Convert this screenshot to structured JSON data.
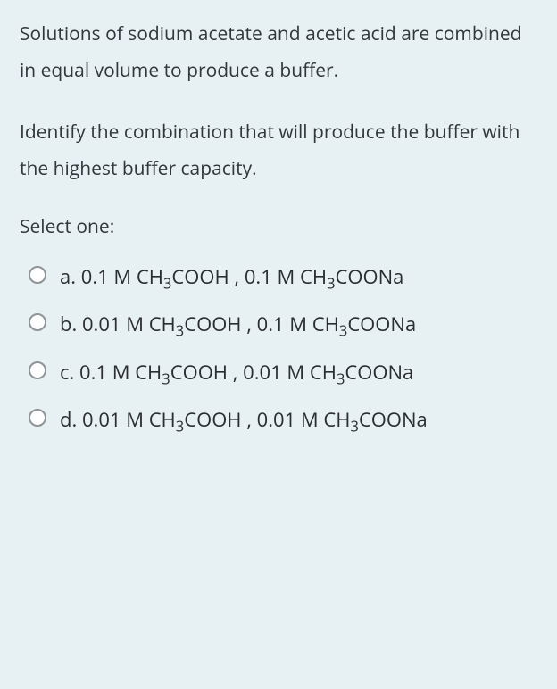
{
  "background_color": "#e7f0f2",
  "text_color": "#32373c",
  "option_text_color": "#2a2e32",
  "radio_border_color": "#8f9498",
  "font_family": "Segoe UI, Open Sans, Arial, sans-serif",
  "question": {
    "paragraph1": "Solutions of sodium acetate and acetic acid are combined in equal volume to produce a buffer.",
    "paragraph2": "Identify the combination that will produce the buffer with the highest buffer capacity."
  },
  "select_one_label": "Select one:",
  "options": [
    {
      "letter": "a.",
      "prefix1": "0.1 M CH",
      "sub1": "3",
      "mid1": "COOH , 0.1 M CH",
      "sub2": "3",
      "suffix": "COONa",
      "selected": false
    },
    {
      "letter": "b.",
      "prefix1": "0.01 M CH",
      "sub1": "3",
      "mid1": "COOH , 0.1 M CH",
      "sub2": "3",
      "suffix": "COONa",
      "selected": false
    },
    {
      "letter": "c.",
      "prefix1": "0.1 M CH",
      "sub1": "3",
      "mid1": "COOH , 0.01 M CH",
      "sub2": "3",
      "suffix": "COONa",
      "selected": false
    },
    {
      "letter": "d.",
      "prefix1": "0.01 M CH",
      "sub1": "3",
      "mid1": "COOH , 0.01 M CH",
      "sub2": "3",
      "suffix": "COONa",
      "selected": false
    }
  ]
}
